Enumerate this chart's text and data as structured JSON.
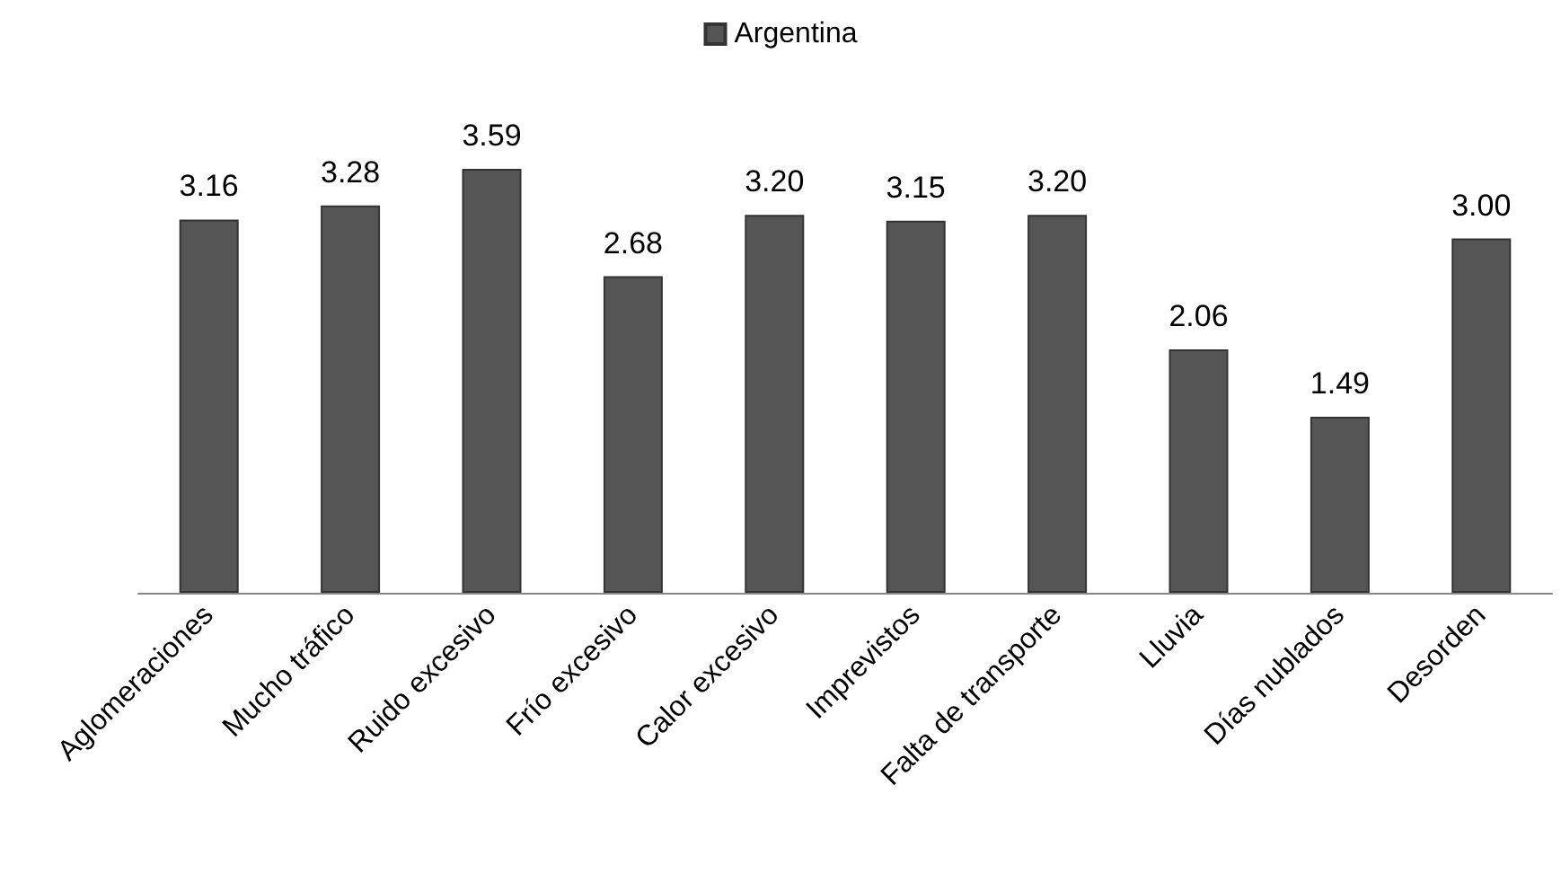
{
  "chart_data": {
    "type": "bar",
    "categories": [
      "Aglomeraciones",
      "Mucho tráfico",
      "Ruido excesivo",
      "Frío excesivo",
      "Calor excesivo",
      "Imprevistos",
      "Falta de transporte",
      "Lluvia",
      "Días nublados",
      "Desorden"
    ],
    "series": [
      {
        "name": "Argentina",
        "color": "#555555",
        "values": [
          3.16,
          3.28,
          3.59,
          2.68,
          3.2,
          3.15,
          3.2,
          2.06,
          1.49,
          3.0
        ],
        "value_labels": [
          "3.16",
          "3.28",
          "3.59",
          "2.68",
          "3.20",
          "3.15",
          "3.20",
          "2.06",
          "1.49",
          "3.00"
        ]
      }
    ],
    "legend": "top",
    "grid": false
  }
}
